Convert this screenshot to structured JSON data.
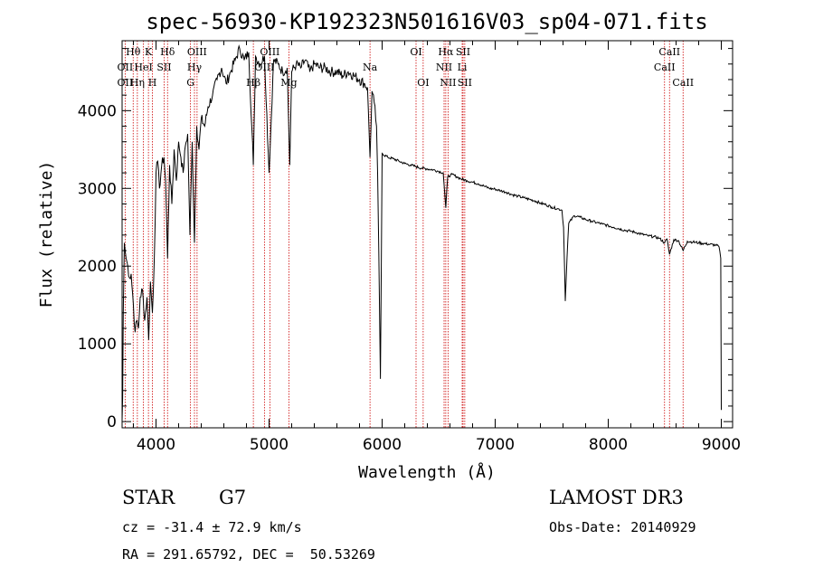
{
  "chart_data": {
    "type": "line",
    "title": "spec-56930-KP192323N501616V03_sp04-071.fits",
    "xlabel": "Wavelength (Å)",
    "ylabel": "Flux (relative)",
    "xlim": [
      3700,
      9100
    ],
    "ylim": [
      -80,
      4900
    ],
    "xticks": [
      4000,
      5000,
      6000,
      7000,
      8000,
      9000
    ],
    "yticks": [
      0,
      1000,
      2000,
      3000,
      4000
    ],
    "series": [
      {
        "name": "spectrum",
        "x": [
          3700,
          3705,
          3710,
          3720,
          3735,
          3750,
          3765,
          3780,
          3800,
          3815,
          3830,
          3845,
          3860,
          3880,
          3900,
          3920,
          3935,
          3950,
          3968,
          3985,
          4000,
          4015,
          4030,
          4050,
          4070,
          4085,
          4102,
          4120,
          4140,
          4160,
          4180,
          4200,
          4220,
          4240,
          4260,
          4280,
          4300,
          4320,
          4340,
          4360,
          4380,
          4400,
          4430,
          4460,
          4500,
          4540,
          4580,
          4620,
          4660,
          4700,
          4740,
          4780,
          4820,
          4861,
          4880,
          4920,
          4960,
          5000,
          5040,
          5080,
          5120,
          5160,
          5183,
          5200,
          5240,
          5280,
          5320,
          5360,
          5400,
          5450,
          5500,
          5550,
          5600,
          5650,
          5700,
          5750,
          5800,
          5840,
          5870,
          5893,
          5910,
          5930,
          5950,
          5960,
          5970,
          5985,
          6000,
          6050,
          6100,
          6150,
          6200,
          6250,
          6300,
          6350,
          6400,
          6450,
          6500,
          6540,
          6563,
          6580,
          6620,
          6660,
          6700,
          6750,
          6800,
          6850,
          6900,
          6950,
          7000,
          7050,
          7100,
          7150,
          7200,
          7250,
          7300,
          7350,
          7400,
          7450,
          7500,
          7550,
          7590,
          7605,
          7620,
          7635,
          7650,
          7700,
          7750,
          7800,
          7850,
          7900,
          7950,
          8000,
          8050,
          8100,
          8150,
          8200,
          8250,
          8300,
          8350,
          8400,
          8450,
          8498,
          8520,
          8542,
          8580,
          8620,
          8662,
          8700,
          8750,
          8800,
          8850,
          8900,
          8950,
          8980,
          8995,
          9000
        ],
        "y": [
          20,
          300,
          1400,
          2300,
          2100,
          2000,
          1850,
          1900,
          1500,
          1150,
          1300,
          1200,
          1600,
          1700,
          1300,
          1600,
          1050,
          1800,
          1400,
          2100,
          3200,
          3350,
          3000,
          3300,
          3400,
          3100,
          2100,
          3300,
          2800,
          3500,
          3100,
          3600,
          3400,
          3200,
          3550,
          3700,
          2400,
          3600,
          2300,
          3800,
          3500,
          3900,
          3800,
          4050,
          4200,
          4400,
          4550,
          4350,
          4500,
          4650,
          4800,
          4650,
          4750,
          3300,
          4700,
          4600,
          4700,
          3200,
          4650,
          4600,
          4500,
          4550,
          3300,
          4500,
          4600,
          4550,
          4650,
          4500,
          4600,
          4550,
          4550,
          4500,
          4500,
          4450,
          4500,
          4450,
          4400,
          4350,
          4300,
          3400,
          4250,
          4100,
          3800,
          3200,
          2200,
          550,
          3450,
          3400,
          3380,
          3350,
          3320,
          3300,
          3280,
          3260,
          3250,
          3240,
          3220,
          3200,
          2750,
          3150,
          3180,
          3150,
          3120,
          3100,
          3080,
          3060,
          3030,
          3000,
          2990,
          2970,
          2950,
          2920,
          2900,
          2880,
          2860,
          2840,
          2810,
          2790,
          2760,
          2740,
          2720,
          2500,
          1550,
          2100,
          2550,
          2650,
          2630,
          2600,
          2580,
          2560,
          2540,
          2520,
          2500,
          2480,
          2460,
          2450,
          2430,
          2410,
          2390,
          2380,
          2360,
          2300,
          2350,
          2150,
          2340,
          2330,
          2200,
          2320,
          2310,
          2300,
          2290,
          2280,
          2270,
          2250,
          2100,
          150
        ]
      }
    ],
    "line_labels": [
      {
        "text": "Hθ",
        "x": 3798,
        "row": 1
      },
      {
        "text": "K",
        "x": 3933,
        "row": 1
      },
      {
        "text": "Hδ",
        "x": 4102,
        "row": 1
      },
      {
        "text": "OIII",
        "x": 4363,
        "row": 1
      },
      {
        "text": "OIII",
        "x": 5007,
        "row": 1
      },
      {
        "text": "OI",
        "x": 6300,
        "row": 1
      },
      {
        "text": "Hα",
        "x": 6563,
        "row": 1
      },
      {
        "text": "SII",
        "x": 6716,
        "row": 1
      },
      {
        "text": "CaII",
        "x": 8542,
        "row": 1
      },
      {
        "text": "OII",
        "x": 3727,
        "row": 2
      },
      {
        "text": "HeI",
        "x": 3889,
        "row": 2
      },
      {
        "text": "SII",
        "x": 4072,
        "row": 2
      },
      {
        "text": "Hγ",
        "x": 4340,
        "row": 2
      },
      {
        "text": "OIII",
        "x": 4959,
        "row": 2
      },
      {
        "text": "Na",
        "x": 5893,
        "row": 2
      },
      {
        "text": "NII",
        "x": 6548,
        "row": 2
      },
      {
        "text": "Li",
        "x": 6708,
        "row": 2
      },
      {
        "text": "CaII",
        "x": 8498,
        "row": 2
      },
      {
        "text": "OII",
        "x": 3727,
        "row": 3
      },
      {
        "text": "Hη",
        "x": 3835,
        "row": 3
      },
      {
        "text": "H",
        "x": 3968,
        "row": 3
      },
      {
        "text": "G",
        "x": 4305,
        "row": 3
      },
      {
        "text": "Hβ",
        "x": 4861,
        "row": 3
      },
      {
        "text": "Mg",
        "x": 5175,
        "row": 3
      },
      {
        "text": "OI",
        "x": 6363,
        "row": 3
      },
      {
        "text": "NII",
        "x": 6583,
        "row": 3
      },
      {
        "text": "SII",
        "x": 6731,
        "row": 3
      },
      {
        "text": "CaII",
        "x": 8662,
        "row": 3
      }
    ],
    "vlines": [
      3727,
      3798,
      3835,
      3889,
      3933,
      3968,
      4072,
      4102,
      4305,
      4340,
      4363,
      4861,
      4959,
      5007,
      5175,
      5893,
      6300,
      6363,
      6548,
      6563,
      6583,
      6708,
      6716,
      6731,
      8498,
      8542,
      8662
    ],
    "vline_color": "#cc0000"
  },
  "info": {
    "object_class": "STAR",
    "subclass": "G7",
    "survey": "LAMOST DR3",
    "redshift": "cz = -31.4 ± 72.9 km/s",
    "obs_date": "Obs-Date: 20140929",
    "coords": "RA = 291.65792, DEC =  50.53269"
  }
}
